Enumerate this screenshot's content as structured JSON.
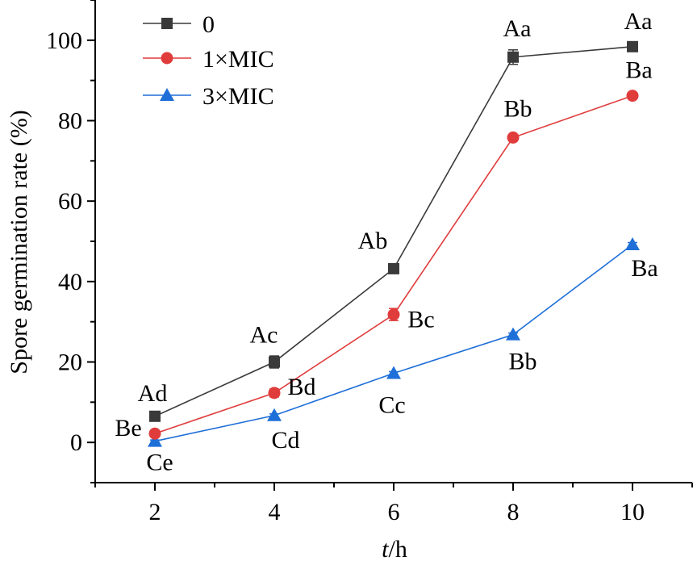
{
  "chart_data": {
    "type": "line",
    "title": "",
    "xlabel": {
      "italic": "t",
      "rest": "/h"
    },
    "ylabel": "Spore germination rate (%)",
    "x": [
      2,
      4,
      6,
      8,
      10
    ],
    "xlim": [
      1,
      11
    ],
    "ylim": [
      -10,
      110
    ],
    "x_ticks": [
      "2",
      "4",
      "6",
      "8",
      "10"
    ],
    "y_ticks": [
      "0",
      "20",
      "40",
      "60",
      "80",
      "100"
    ],
    "legend_position": "top-left",
    "grid": false,
    "series": [
      {
        "name": "0",
        "color": "#3a3a3a",
        "marker": "square",
        "values": [
          6.5,
          20,
          43.2,
          95.8,
          98.4
        ],
        "errors": [
          0.6,
          1.5,
          1.2,
          1.8,
          0.5
        ],
        "labels": [
          "Ad",
          "Ac",
          "Ab",
          "Aa",
          "Aa"
        ]
      },
      {
        "name": "1×MIC",
        "color": "#e03c3c",
        "marker": "circle",
        "values": [
          2.2,
          12.3,
          31.8,
          75.8,
          86.2
        ],
        "errors": [
          0.5,
          1.0,
          1.5,
          0.5,
          0.5
        ],
        "labels": [
          "Be",
          "Bd",
          "Bc",
          "Bb",
          "Ba"
        ]
      },
      {
        "name": "3×MIC",
        "color": "#1f6fd8",
        "marker": "triangle",
        "values": [
          0.3,
          6.7,
          17.2,
          26.8,
          49.2
        ],
        "errors": [
          0.3,
          0.4,
          0.4,
          0.4,
          0.5
        ],
        "labels": [
          "Ce",
          "Cd",
          "Cc",
          "Bb",
          "Ba"
        ]
      }
    ]
  }
}
